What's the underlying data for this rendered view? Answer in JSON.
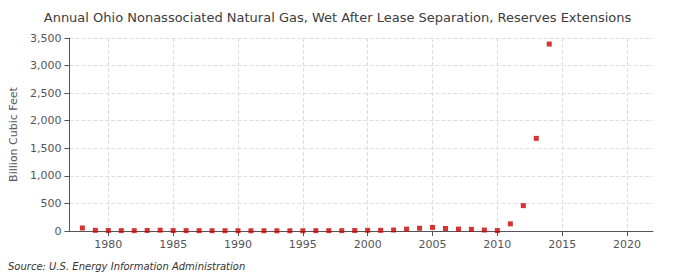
{
  "chart_data": {
    "type": "scatter",
    "title": "Annual Ohio Nonassociated Natural Gas, Wet After Lease Separation, Reserves Extensions",
    "ylabel": "Billion Cubic Feet",
    "annotations": [
      "Source: U.S. Energy Information Administration"
    ],
    "x": [
      1978,
      1979,
      1980,
      1981,
      1982,
      1983,
      1984,
      1985,
      1986,
      1987,
      1988,
      1989,
      1990,
      1991,
      1992,
      1993,
      1994,
      1995,
      1996,
      1997,
      1998,
      1999,
      2000,
      2001,
      2002,
      2003,
      2004,
      2005,
      2006,
      2007,
      2008,
      2009,
      2010,
      2011,
      2012,
      2013,
      2014
    ],
    "values": [
      55,
      12,
      8,
      7,
      6,
      10,
      15,
      8,
      7,
      6,
      5,
      5,
      5,
      4,
      4,
      4,
      4,
      4,
      6,
      6,
      6,
      8,
      12,
      12,
      18,
      35,
      50,
      65,
      45,
      35,
      30,
      18,
      8,
      130,
      460,
      1680,
      3390
    ],
    "color": "#cc0000",
    "marker": "square",
    "xlim": [
      1977,
      2022
    ],
    "xticks": [
      1980,
      1985,
      1990,
      1995,
      2000,
      2005,
      2010,
      2015,
      2020
    ],
    "ylim": [
      0,
      3500
    ],
    "yticks": [
      0,
      500,
      {
        "value": 1000,
        "label": "1,000"
      },
      {
        "value": 1500,
        "label": "1,500"
      },
      {
        "value": 2000,
        "label": "2,000"
      },
      {
        "value": 2500,
        "label": "2,500"
      },
      {
        "value": 3000,
        "label": "3,000"
      },
      {
        "value": 3500,
        "label": "3,500"
      }
    ],
    "grid": true
  }
}
